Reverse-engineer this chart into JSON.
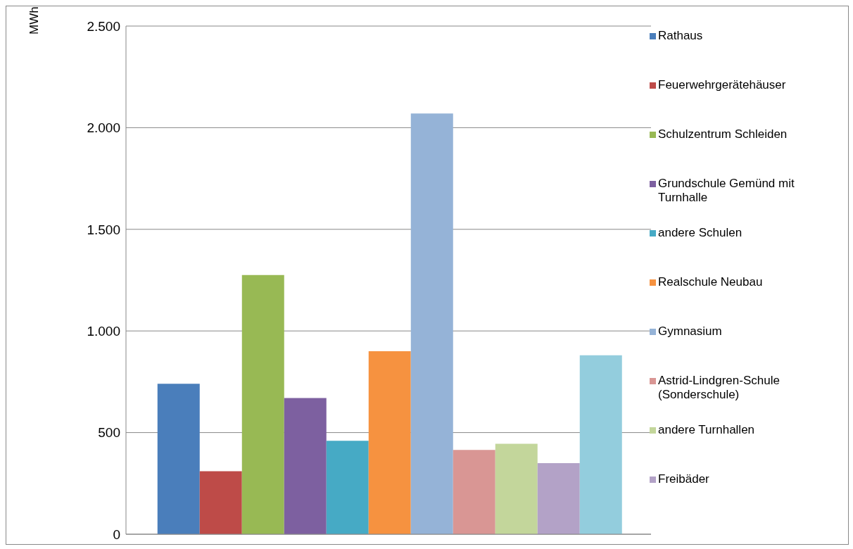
{
  "chart_data": {
    "type": "bar",
    "ylabel": "MWh",
    "categories": [
      null
    ],
    "series": [
      {
        "name": "Rathaus",
        "color": "#4a7ebb",
        "values": [
          740
        ]
      },
      {
        "name": "Feuerwehrgerätehäuser",
        "color": "#be4b48",
        "values": [
          310
        ]
      },
      {
        "name": "Schulzentrum Schleiden",
        "color": "#98b954",
        "values": [
          1275
        ]
      },
      {
        "name": "Grundschule Gemünd mit Turnhalle",
        "color": "#7d60a0",
        "values": [
          670
        ]
      },
      {
        "name": "andere Schulen",
        "color": "#46aac5",
        "values": [
          460
        ]
      },
      {
        "name": "Realschule Neubau",
        "color": "#f69240",
        "values": [
          900
        ]
      },
      {
        "name": "Gymnasium",
        "color": "#95b3d7",
        "values": [
          2070
        ]
      },
      {
        "name": "Astrid-Lindgren-Schule (Sonderschule)",
        "color": "#d99694",
        "values": [
          415
        ]
      },
      {
        "name": "andere Turnhallen",
        "color": "#c3d69b",
        "values": [
          445
        ]
      },
      {
        "name": "Freibäder",
        "color": "#b3a2c7",
        "values": [
          350
        ]
      },
      {
        "color": "#93cddd",
        "values": [
          880
        ]
      }
    ],
    "ylim": [
      0,
      2500
    ],
    "yticks": [
      {
        "value": 0,
        "label": "0"
      },
      {
        "value": 500,
        "label": "500"
      },
      {
        "value": 1000,
        "label": "1.000"
      },
      {
        "value": 1500,
        "label": "1.500"
      },
      {
        "value": 2000,
        "label": "2.000"
      },
      {
        "value": 2500,
        "label": "2.500"
      }
    ],
    "grid": "y",
    "legend": "right"
  }
}
